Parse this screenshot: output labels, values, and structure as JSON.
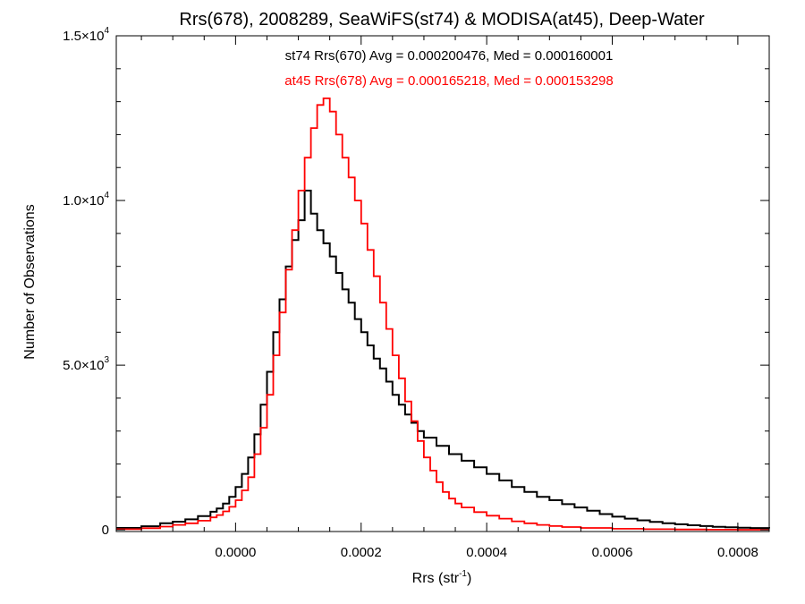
{
  "chart_data": {
    "type": "line",
    "title": "Rrs(678), 2008289, SeaWiFS(st74) & MODISA(at45), Deep-Water",
    "xlabel": "Rrs (str",
    "xlabel_sup": "-1",
    "xlabel_end": ")",
    "ylabel": "Number of Observations",
    "xlim": [
      -0.00019,
      0.00085
    ],
    "ylim": [
      -50,
      15000
    ],
    "x_ticks": [
      0.0,
      0.0002,
      0.0004,
      0.0006,
      0.0008
    ],
    "x_tick_labels": [
      "0.0000",
      "0.0002",
      "0.0004",
      "0.0006",
      "0.0008"
    ],
    "y_ticks": [
      0,
      5000,
      10000,
      15000
    ],
    "y_tick_labels": [
      {
        "mantissa": "0",
        "exp": ""
      },
      {
        "mantissa": "5.0×10",
        "exp": "3"
      },
      {
        "mantissa": "1.0×10",
        "exp": "4"
      },
      {
        "mantissa": "1.5×10",
        "exp": "4"
      }
    ],
    "grid": false,
    "annotations": [
      {
        "text": "st74 Rrs(670) Avg = 0.000200476, Med = 0.000160001",
        "color": "#000000"
      },
      {
        "text": "at45 Rrs(678) Avg = 0.000165218, Med = 0.000153298",
        "color": "#ff0000"
      }
    ],
    "series": [
      {
        "color": "#000000",
        "style": "step",
        "points": [
          [
            -0.00019,
            60
          ],
          [
            -0.00015,
            110
          ],
          [
            -0.00012,
            200
          ],
          [
            -0.0001,
            250
          ],
          [
            -8e-05,
            320
          ],
          [
            -6e-05,
            420
          ],
          [
            -4e-05,
            550
          ],
          [
            -3e-05,
            650
          ],
          [
            -2e-05,
            800
          ],
          [
            -1e-05,
            1000
          ],
          [
            0.0,
            1300
          ],
          [
            1e-05,
            1700
          ],
          [
            2e-05,
            2200
          ],
          [
            3e-05,
            2900
          ],
          [
            4e-05,
            3800
          ],
          [
            5e-05,
            4800
          ],
          [
            6e-05,
            6000
          ],
          [
            7e-05,
            7000
          ],
          [
            8e-05,
            8000
          ],
          [
            9e-05,
            8800
          ],
          [
            0.0001,
            9400
          ],
          [
            0.00011,
            10300
          ],
          [
            0.00012,
            9600
          ],
          [
            0.00013,
            9100
          ],
          [
            0.00014,
            8700
          ],
          [
            0.00015,
            8300
          ],
          [
            0.00016,
            7800
          ],
          [
            0.00017,
            7300
          ],
          [
            0.00018,
            6900
          ],
          [
            0.00019,
            6400
          ],
          [
            0.0002,
            6000
          ],
          [
            0.00021,
            5600
          ],
          [
            0.00022,
            5200
          ],
          [
            0.00023,
            4900
          ],
          [
            0.00024,
            4500
          ],
          [
            0.00025,
            4100
          ],
          [
            0.00026,
            3800
          ],
          [
            0.00027,
            3500
          ],
          [
            0.00028,
            3250
          ],
          [
            0.00029,
            3000
          ],
          [
            0.0003,
            2800
          ],
          [
            0.00032,
            2550
          ],
          [
            0.00034,
            2300
          ],
          [
            0.00036,
            2100
          ],
          [
            0.00038,
            1900
          ],
          [
            0.0004,
            1700
          ],
          [
            0.00042,
            1500
          ],
          [
            0.00044,
            1300
          ],
          [
            0.00046,
            1150
          ],
          [
            0.00048,
            1000
          ],
          [
            0.0005,
            900
          ],
          [
            0.00052,
            780
          ],
          [
            0.00054,
            680
          ],
          [
            0.00056,
            580
          ],
          [
            0.00058,
            480
          ],
          [
            0.0006,
            400
          ],
          [
            0.00062,
            340
          ],
          [
            0.00064,
            290
          ],
          [
            0.00066,
            240
          ],
          [
            0.00068,
            200
          ],
          [
            0.0007,
            170
          ],
          [
            0.00072,
            140
          ],
          [
            0.00074,
            115
          ],
          [
            0.00076,
            95
          ],
          [
            0.00078,
            80
          ],
          [
            0.0008,
            65
          ],
          [
            0.00082,
            55
          ],
          [
            0.00085,
            45
          ]
        ]
      },
      {
        "color": "#ff0000",
        "style": "step",
        "points": [
          [
            -0.00019,
            20
          ],
          [
            -0.00015,
            50
          ],
          [
            -0.00012,
            100
          ],
          [
            -0.0001,
            150
          ],
          [
            -8e-05,
            200
          ],
          [
            -6e-05,
            280
          ],
          [
            -4e-05,
            380
          ],
          [
            -3e-05,
            450
          ],
          [
            -2e-05,
            560
          ],
          [
            -1e-05,
            700
          ],
          [
            0.0,
            900
          ],
          [
            1e-05,
            1200
          ],
          [
            2e-05,
            1600
          ],
          [
            3e-05,
            2300
          ],
          [
            4e-05,
            3100
          ],
          [
            5e-05,
            4100
          ],
          [
            6e-05,
            5300
          ],
          [
            7e-05,
            6600
          ],
          [
            8e-05,
            7900
          ],
          [
            9e-05,
            9100
          ],
          [
            0.0001,
            10300
          ],
          [
            0.00011,
            11300
          ],
          [
            0.00012,
            12200
          ],
          [
            0.00013,
            12900
          ],
          [
            0.00014,
            13100
          ],
          [
            0.00015,
            12700
          ],
          [
            0.00016,
            12000
          ],
          [
            0.00017,
            11300
          ],
          [
            0.00018,
            10700
          ],
          [
            0.00019,
            10000
          ],
          [
            0.0002,
            9300
          ],
          [
            0.00021,
            8500
          ],
          [
            0.00022,
            7700
          ],
          [
            0.00023,
            6900
          ],
          [
            0.00024,
            6100
          ],
          [
            0.00025,
            5300
          ],
          [
            0.00026,
            4600
          ],
          [
            0.00027,
            3900
          ],
          [
            0.00028,
            3300
          ],
          [
            0.00029,
            2700
          ],
          [
            0.0003,
            2200
          ],
          [
            0.00031,
            1800
          ],
          [
            0.00032,
            1450
          ],
          [
            0.00033,
            1150
          ],
          [
            0.00034,
            950
          ],
          [
            0.00035,
            800
          ],
          [
            0.00036,
            680
          ],
          [
            0.00038,
            540
          ],
          [
            0.0004,
            430
          ],
          [
            0.00042,
            340
          ],
          [
            0.00044,
            260
          ],
          [
            0.00046,
            200
          ],
          [
            0.00048,
            150
          ],
          [
            0.0005,
            115
          ],
          [
            0.00052,
            85
          ],
          [
            0.00055,
            60
          ],
          [
            0.0006,
            35
          ],
          [
            0.00065,
            20
          ],
          [
            0.0007,
            12
          ],
          [
            0.00075,
            8
          ],
          [
            0.0008,
            5
          ],
          [
            0.00085,
            3
          ]
        ]
      }
    ]
  }
}
